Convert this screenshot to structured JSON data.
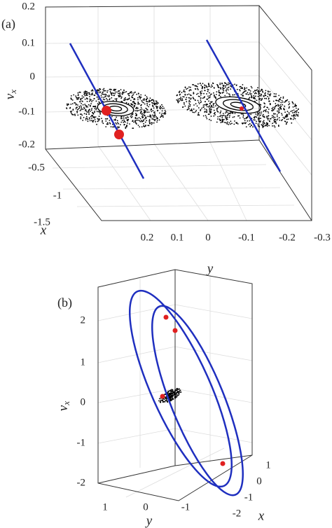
{
  "panels": [
    {
      "label": "(a)",
      "z_label": "v",
      "z_label_sub": "x",
      "x_label": "x",
      "y_label": "y",
      "z_ticks": [
        "0.2",
        "0.1",
        "0",
        "-0.1",
        "-0.2"
      ],
      "x_ticks": [
        "-0.5",
        "-1",
        "-1.5"
      ],
      "y_ticks": [
        "0.2",
        "0.1",
        "0",
        "-0.1",
        "-0.2",
        "-0.3"
      ]
    },
    {
      "label": "(b)",
      "z_label": "v",
      "z_label_sub": "x",
      "x_label": "x",
      "y_label": "y",
      "z_ticks": [
        "2",
        "1",
        "0",
        "-1",
        "-2"
      ],
      "x_ticks": [
        "1",
        "0",
        "-1",
        "-2"
      ],
      "y_ticks": [
        "1",
        "0",
        "-1"
      ]
    }
  ]
}
